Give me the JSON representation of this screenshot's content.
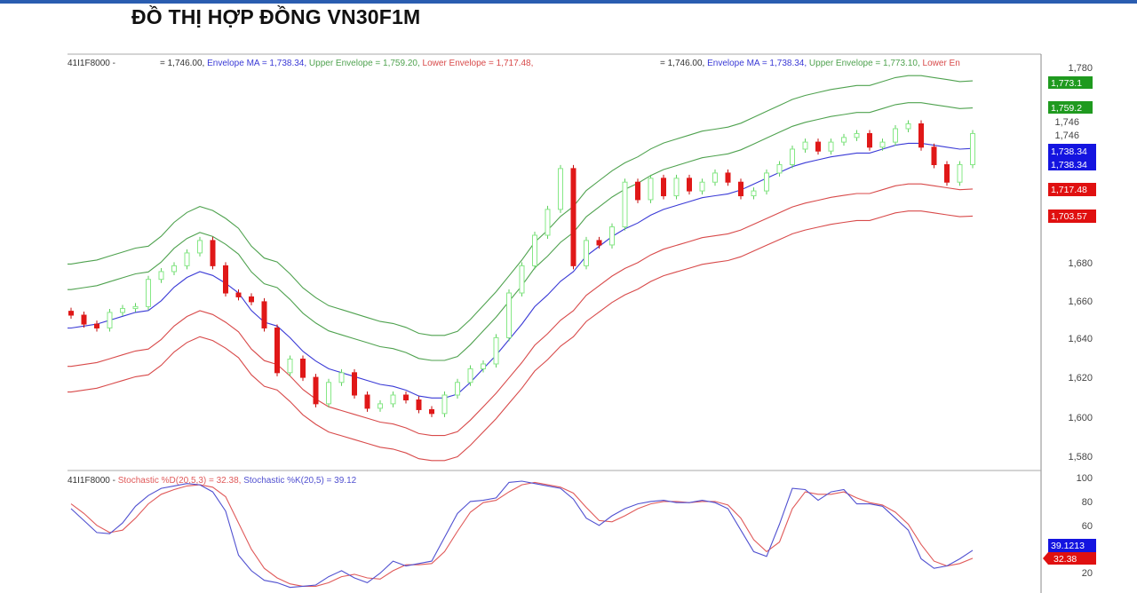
{
  "title": "ĐỒ THỊ HỢP ĐỒNG VN30F1M",
  "legend_main": {
    "symbol": "41I1F8000 -",
    "set1": {
      "close": "= 1,746.00,",
      "ma": "Envelope MA = 1,738.34,",
      "upper": "Upper Envelope = 1,759.20,",
      "lower": "Lower Envelope = 1,717.48,"
    },
    "set2": {
      "close": "= 1,746.00,",
      "ma": "Envelope MA = 1,738.34,",
      "upper": "Upper Envelope = 1,773.10,",
      "lower": "Lower En"
    }
  },
  "legend_stoch": {
    "symbol": "41I1F8000 -",
    "d": "Stochastic %D(20,5,3) = 32.38,",
    "k": "Stochastic %K(20,5) = 39.12"
  },
  "price_axis": {
    "ticks": [
      "1,780",
      "1,680",
      "1,660",
      "1,640",
      "1,620",
      "1,600",
      "1,580"
    ],
    "last_close_labels": [
      "1,746",
      "1,746"
    ],
    "tags": {
      "upper_outer": "1,773.1",
      "upper_inner": "1,759.2",
      "ma_1": "1,738.34",
      "ma_2": "1,738.34",
      "lower_inner": "1,717.48",
      "lower_outer": "1,703.57"
    }
  },
  "stoch_axis": {
    "ticks": [
      "100",
      "80",
      "60",
      "20"
    ],
    "tags": {
      "k": "39.1213",
      "d": "32.38"
    }
  },
  "colors": {
    "up": "#86e886",
    "down": "#e01818",
    "ma": "#3a3ad6",
    "upper": "#4fa24f",
    "lower": "#d84a4a",
    "k": "#5050d0",
    "d": "#e05a5a",
    "tag_green": "#1f9a1f",
    "tag_blue": "#1414e0",
    "tag_red": "#e01010"
  },
  "chart_data": [
    {
      "type": "candlestick",
      "title": "",
      "ylim": [
        1570,
        1790
      ],
      "grid": false,
      "envelope_pct": [
        1.2,
        2.0
      ],
      "close": [
        1652.6,
        1648,
        1646,
        1654,
        1656,
        1657,
        1671,
        1675,
        1678,
        1684.6,
        1691,
        1678,
        1664,
        1662,
        1659.5,
        1646,
        1623,
        1630,
        1620.6,
        1607,
        1618,
        1623,
        1611.5,
        1604.7,
        1607,
        1611.5,
        1609,
        1604,
        1602,
        1611.5,
        1618,
        1625,
        1627.5,
        1641,
        1664,
        1678,
        1693.7,
        1707,
        1728,
        1678,
        1691,
        1688.7,
        1698,
        1721,
        1712,
        1723,
        1714,
        1723,
        1716.5,
        1721,
        1725.7,
        1721,
        1714,
        1716.5,
        1725.7,
        1730,
        1738,
        1741.6,
        1737,
        1741.6,
        1744,
        1746,
        1739,
        1741.6,
        1748.5,
        1751,
        1739,
        1730,
        1721,
        1730,
        1746
      ],
      "envelope_ma": [
        1646,
        1647,
        1648,
        1650,
        1652,
        1654,
        1655,
        1660,
        1667,
        1672,
        1675,
        1673,
        1669,
        1664,
        1655,
        1649,
        1647,
        1641,
        1634,
        1629,
        1625,
        1623,
        1621,
        1619,
        1617,
        1616,
        1614,
        1611,
        1610,
        1610,
        1612,
        1618,
        1625,
        1632,
        1640,
        1648,
        1657,
        1663,
        1670,
        1675,
        1683,
        1688,
        1693,
        1697,
        1700,
        1704,
        1707,
        1709,
        1711,
        1713,
        1714,
        1715,
        1717,
        1720,
        1723,
        1726,
        1729,
        1731,
        1732.5,
        1734,
        1735,
        1736,
        1736,
        1738,
        1740,
        1741,
        1741,
        1740,
        1739,
        1738,
        1738.34
      ]
    },
    {
      "type": "line",
      "title": "",
      "ylim": [
        0,
        100
      ],
      "series": [
        {
          "name": "Stochastic %K(20,5)",
          "values": [
            74,
            64,
            54,
            53,
            62,
            76,
            85,
            91,
            93,
            95,
            94,
            88,
            72,
            35,
            22,
            14,
            12,
            8,
            9,
            10,
            17,
            22,
            16,
            12,
            20,
            30,
            26,
            28,
            30,
            50,
            70,
            80,
            81,
            83,
            96,
            97,
            95,
            93,
            91,
            82,
            66,
            60,
            68,
            74,
            78,
            80,
            81,
            79,
            79,
            81,
            79,
            74,
            56,
            38,
            34,
            61,
            91,
            90,
            81,
            88,
            90,
            78,
            78,
            76,
            66,
            56,
            32,
            24,
            26,
            32,
            39.12
          ]
        },
        {
          "name": "Stochastic %D(20,5,3)",
          "values": [
            78,
            70,
            60,
            54,
            56,
            66,
            78,
            86,
            90,
            93,
            94,
            92,
            84,
            62,
            40,
            24,
            16,
            11,
            9,
            9,
            12,
            17,
            19,
            16,
            15,
            22,
            27,
            27,
            28,
            38,
            55,
            71,
            79,
            81,
            88,
            94,
            96,
            94,
            92,
            87,
            75,
            64,
            63,
            68,
            74,
            78,
            80,
            80,
            79,
            80,
            80,
            77,
            66,
            48,
            38,
            46,
            74,
            88,
            86,
            86,
            88,
            83,
            79,
            77,
            71,
            61,
            44,
            30,
            26,
            28,
            32.38
          ]
        }
      ]
    }
  ]
}
